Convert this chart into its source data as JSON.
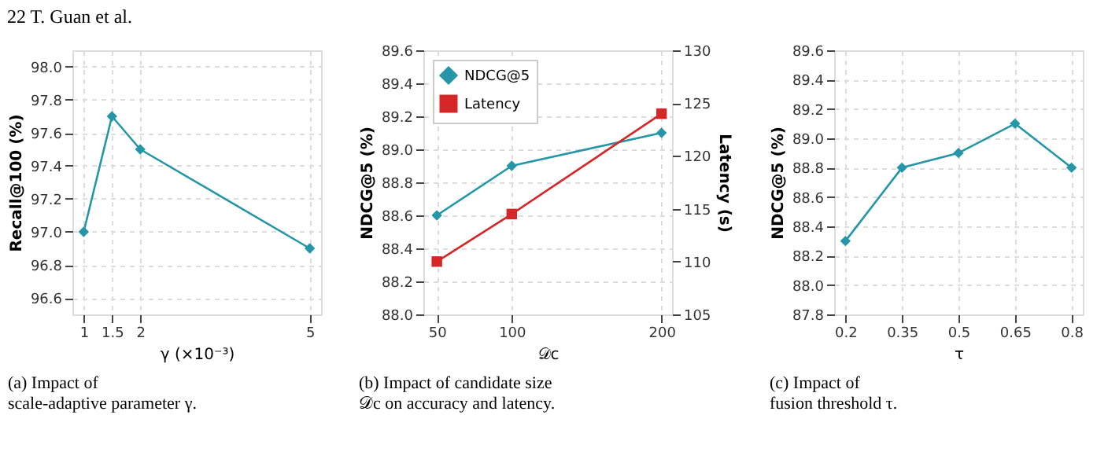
{
  "chart_data": [
    {
      "type": "line",
      "title": "(a) Impact of scale-adaptive parameter γ.",
      "annotations": [
        "22 T. Guan et al."
      ],
      "xlabel": "γ (×10⁻³)",
      "ylabel": "Recall@100 (%)",
      "x": [
        1,
        1.5,
        2,
        5
      ],
      "series": [
        {
          "color": "#2596a8",
          "values": [
            97.0,
            97.7,
            97.5,
            96.9
          ]
        }
      ],
      "xlim": [
        0.8,
        5.2
      ],
      "xticks": [
        1,
        1.5,
        2,
        5
      ],
      "ylim": [
        96.5,
        98.1
      ],
      "yticks": [
        96.6,
        96.8,
        {
          "value": 97.0,
          "label": "97.0"
        },
        97.2,
        97.4,
        97.6,
        97.8,
        {
          "value": 98.0,
          "label": "98.0"
        }
      ],
      "grid": true,
      "marker": "diamond",
      "line_style": "solid"
    },
    {
      "type": "line",
      "title": "(b) Impact of candidate size 𝒟c on accuracy and latency.",
      "xlabel": "𝒟c",
      "ylabel": "NDCG@5 (%)",
      "y2label": "Latency (s)",
      "x": [
        50,
        100,
        200
      ],
      "series": [
        {
          "name": "NDCG@5",
          "color": "#2596a8",
          "marker": "diamond",
          "values": [
            88.6,
            88.9,
            89.1
          ]
        },
        {
          "name": "Latency",
          "color": "#d62728",
          "marker": "square",
          "axis": "y2",
          "values": [
            110,
            114.5,
            124
          ]
        }
      ],
      "xlim": [
        41,
        207
      ],
      "xticks": [
        50,
        100,
        200
      ],
      "ylim": [
        88.0,
        89.6
      ],
      "yticks": [
        {
          "value": 88.0,
          "label": "88.0"
        },
        88.2,
        88.4,
        88.6,
        88.8,
        {
          "value": 89.0,
          "label": "89.0"
        },
        89.2,
        89.4,
        89.6
      ],
      "y2lim": [
        105,
        130
      ],
      "y2ticks": [
        105,
        110,
        115,
        120,
        125,
        130
      ],
      "grid": true,
      "legend": "top left",
      "line_style": "solid"
    },
    {
      "type": "line",
      "title": "(c) Impact of fusion threshold τ.",
      "xlabel": "τ",
      "ylabel": "NDCG@5 (%)",
      "x": [
        0.2,
        0.35,
        0.5,
        0.65,
        0.8
      ],
      "series": [
        {
          "color": "#2596a8",
          "values": [
            88.3,
            88.8,
            88.9,
            89.1,
            88.8
          ]
        }
      ],
      "xlim": [
        0.17,
        0.83
      ],
      "xticks": [
        0.2,
        0.35,
        0.5,
        0.65,
        0.8
      ],
      "ylim": [
        87.8,
        89.6
      ],
      "yticks": [
        87.8,
        {
          "value": 88.0,
          "label": "88.0"
        },
        88.2,
        88.4,
        88.6,
        88.8,
        {
          "value": 89.0,
          "label": "89.0"
        },
        89.2,
        89.4,
        89.6
      ],
      "grid": true,
      "marker": "diamond",
      "line_style": "solid"
    }
  ]
}
